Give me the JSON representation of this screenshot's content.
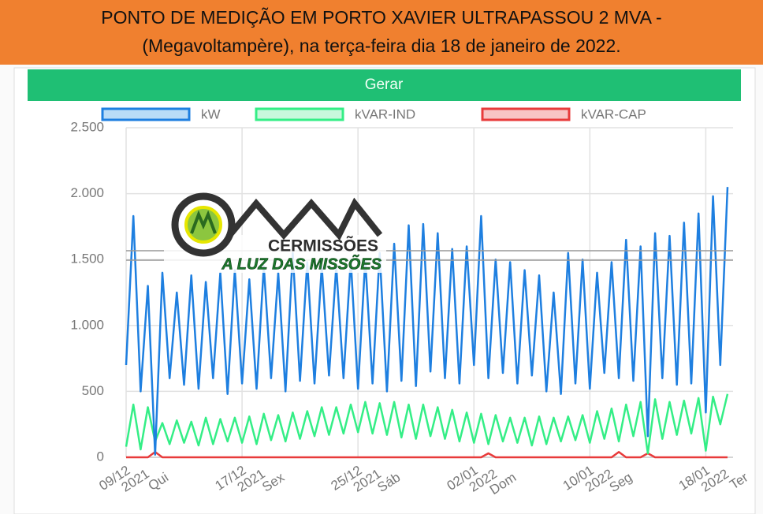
{
  "header": {
    "title_lines": [
      "PONTO DE MEDIÇÃO EM PORTO XAVIER ULTRAPASSOU 2 MVA -",
      "(Megavoltampère), na terça-feira dia 18 de janeiro de 2022."
    ]
  },
  "button": "Gerar",
  "logo": {
    "name": "CERMISSÕES",
    "tagline": "A LUZ DAS MISSÕES"
  },
  "chart_data": {
    "type": "line",
    "categories": [
      "09/12\n2021\nQui",
      null,
      null,
      null,
      null,
      null,
      null,
      null,
      null,
      null,
      null,
      null,
      null,
      null,
      null,
      null,
      "17/12\n2021\nSex",
      null,
      null,
      null,
      null,
      null,
      null,
      null,
      null,
      null,
      null,
      null,
      null,
      null,
      null,
      null,
      "25/12\n2021\nSáb",
      null,
      null,
      null,
      null,
      null,
      null,
      null,
      null,
      null,
      null,
      null,
      null,
      null,
      null,
      null,
      "02/01\n2022\nDom",
      null,
      null,
      null,
      null,
      null,
      null,
      null,
      null,
      null,
      null,
      null,
      null,
      null,
      null,
      null,
      "10/01\n2022\nSeg",
      null,
      null,
      null,
      null,
      null,
      null,
      null,
      null,
      null,
      null,
      null,
      null,
      null,
      null,
      null,
      "18/01\n2022\nTer",
      null,
      null,
      null
    ],
    "series": [
      {
        "name": "kW",
        "color": "#1e7fe0",
        "fill": "#b9dcf7",
        "values": [
          700,
          1830,
          500,
          1300,
          20,
          1400,
          600,
          1250,
          550,
          1380,
          520,
          1330,
          600,
          1400,
          480,
          1420,
          560,
          1350,
          520,
          1450,
          600,
          1400,
          500,
          1550,
          580,
          1480,
          560,
          1450,
          620,
          1450,
          600,
          1500,
          520,
          1500,
          560,
          1550,
          500,
          1620,
          580,
          1760,
          540,
          1770,
          650,
          1700,
          600,
          1580,
          560,
          1600,
          700,
          1830,
          600,
          1500,
          640,
          1480,
          560,
          1420,
          620,
          1380,
          500,
          1250,
          480,
          1550,
          560,
          1500,
          520,
          1400,
          640,
          1480,
          600,
          1650,
          580,
          1600,
          160,
          1700,
          600,
          1680,
          550,
          1780,
          560,
          1850,
          340,
          1980,
          700,
          2050
        ]
      },
      {
        "name": "kVAR-IND",
        "color": "#34ee86",
        "fill": "#c8f8dc",
        "values": [
          80,
          400,
          60,
          380,
          120,
          260,
          100,
          280,
          110,
          270,
          90,
          300,
          100,
          290,
          120,
          300,
          110,
          310,
          100,
          330,
          130,
          320,
          120,
          340,
          140,
          350,
          160,
          380,
          170,
          380,
          180,
          400,
          190,
          420,
          180,
          410,
          170,
          420,
          150,
          400,
          140,
          400,
          160,
          380,
          140,
          360,
          120,
          340,
          110,
          330,
          100,
          320,
          120,
          300,
          110,
          300,
          90,
          310,
          100,
          300,
          120,
          310,
          130,
          320,
          110,
          350,
          140,
          370,
          120,
          400,
          160,
          420,
          30,
          440,
          140,
          420,
          170,
          430,
          180,
          450,
          50,
          460,
          250,
          480
        ]
      },
      {
        "name": "kVAR-CAP",
        "color": "#e83b3b",
        "fill": "#f8c4c4",
        "values": [
          0,
          0,
          0,
          0,
          40,
          0,
          0,
          0,
          0,
          0,
          0,
          0,
          0,
          0,
          0,
          0,
          0,
          0,
          0,
          0,
          0,
          0,
          0,
          0,
          0,
          0,
          0,
          0,
          0,
          0,
          0,
          0,
          0,
          0,
          0,
          0,
          0,
          0,
          0,
          0,
          0,
          0,
          0,
          0,
          0,
          0,
          0,
          0,
          0,
          0,
          30,
          0,
          0,
          0,
          0,
          0,
          0,
          0,
          0,
          0,
          0,
          0,
          0,
          0,
          0,
          0,
          0,
          0,
          40,
          0,
          0,
          0,
          30,
          0,
          0,
          0,
          0,
          0,
          0,
          0,
          0,
          0,
          0,
          0
        ]
      }
    ],
    "ylim": [
      0,
      2500
    ],
    "yticks": [
      0,
      500,
      {
        "value": 1000,
        "label": "1.000"
      },
      {
        "value": 1500,
        "label": "1.500"
      },
      {
        "value": 2000,
        "label": "2.000"
      },
      {
        "value": 2500,
        "label": "2.500"
      }
    ],
    "grid": true,
    "legend": "top"
  }
}
